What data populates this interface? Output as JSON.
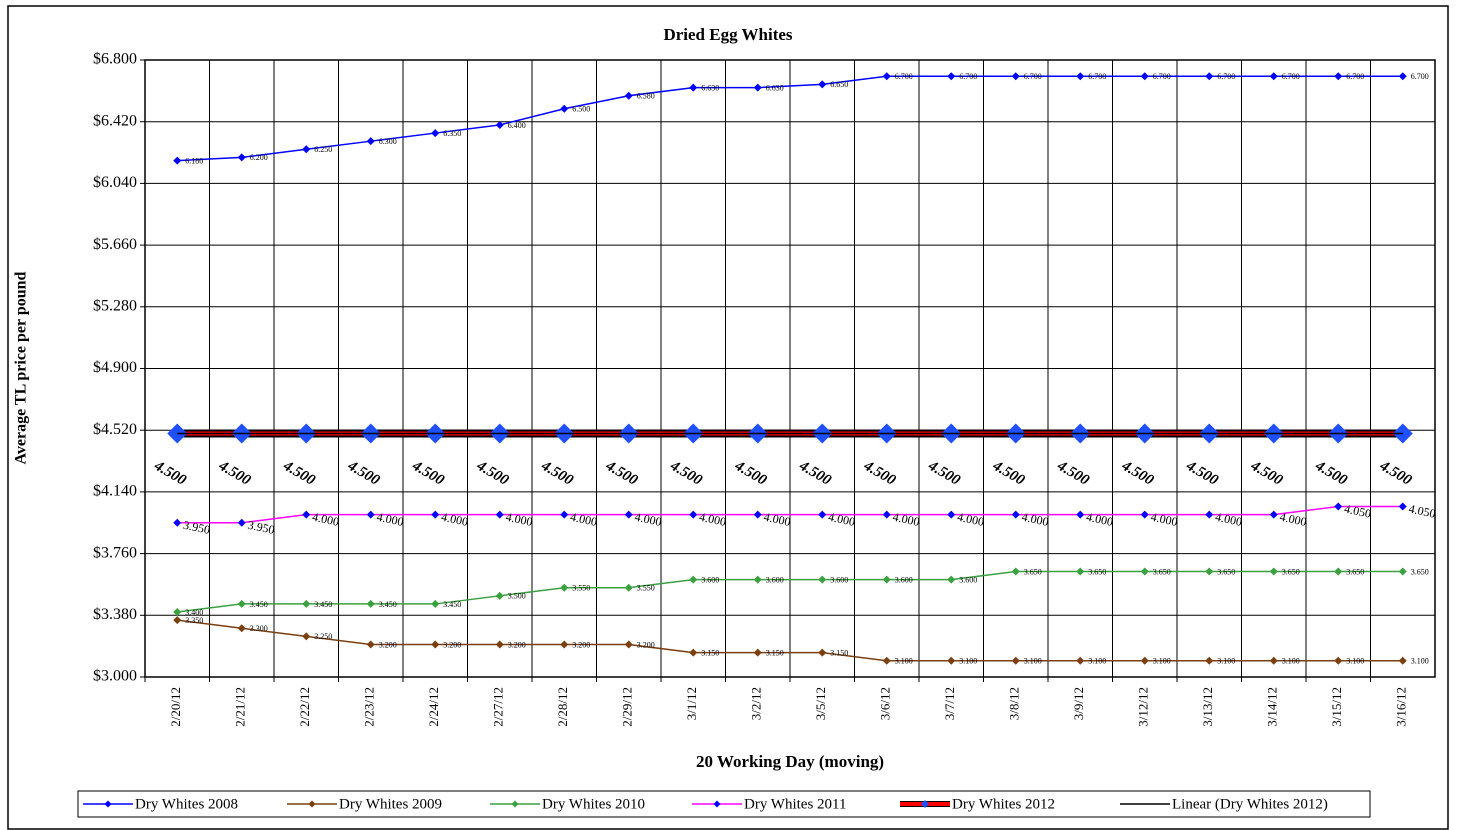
{
  "chart_data": {
    "type": "line",
    "title": "Dried Egg Whites",
    "x_label": "20 Working Day (moving)",
    "y_label": "Average TL price per pound",
    "categories": [
      "2/20/12",
      "2/21/12",
      "2/22/12",
      "2/23/12",
      "2/24/12",
      "2/27/12",
      "2/28/12",
      "2/29/12",
      "3/1/12",
      "3/2/12",
      "3/5/12",
      "3/6/12",
      "3/7/12",
      "3/8/12",
      "3/9/12",
      "3/12/12",
      "3/13/12",
      "3/14/12",
      "3/15/12",
      "3/16/12"
    ],
    "ylim": [
      3.0,
      6.8
    ],
    "yticks": [
      {
        "value": 3.0,
        "label": "$3.000"
      },
      {
        "value": 3.38,
        "label": "$3.380"
      },
      {
        "value": 3.76,
        "label": "$3.760"
      },
      {
        "value": 4.14,
        "label": "$4.140"
      },
      {
        "value": 4.52,
        "label": "$4.520"
      },
      {
        "value": 4.9,
        "label": "$4.900"
      },
      {
        "value": 5.28,
        "label": "$5.280"
      },
      {
        "value": 5.66,
        "label": "$5.660"
      },
      {
        "value": 6.04,
        "label": "$6.040"
      },
      {
        "value": 6.42,
        "label": "$6.420"
      },
      {
        "value": 6.8,
        "label": "$6.800"
      }
    ],
    "grid": true,
    "legend": "bottom",
    "series": [
      {
        "name": "Dry Whites 2008",
        "color": "#0000ff",
        "marker_color": "#0000ff",
        "values": [
          6.18,
          6.2,
          6.25,
          6.3,
          6.35,
          6.4,
          6.5,
          6.58,
          6.63,
          6.63,
          6.65,
          6.7,
          6.7,
          6.7,
          6.7,
          6.7,
          6.7,
          6.7,
          6.7,
          6.7
        ],
        "value_labels": [
          "6.180",
          "6.200",
          "6.250",
          "6.300",
          "6.350",
          "6.400",
          "6.500",
          "6.580",
          "6.630",
          "6.630",
          "6.650",
          "6.700",
          "6.700",
          "6.700",
          "6.700",
          "6.700",
          "6.700",
          "6.700",
          "6.700",
          "6.700"
        ]
      },
      {
        "name": "Dry Whites 2009",
        "color": "#7b3f10",
        "marker_color": "#7b3f10",
        "values": [
          3.35,
          3.3,
          3.25,
          3.2,
          3.2,
          3.2,
          3.2,
          3.2,
          3.15,
          3.15,
          3.15,
          3.1,
          3.1,
          3.1,
          3.1,
          3.1,
          3.1,
          3.1,
          3.1,
          3.1
        ],
        "value_labels": [
          "3.350",
          "3.300",
          "3.250",
          "3.200",
          "3.200",
          "3.200",
          "3.200",
          "3.200",
          "3.150",
          "3.150",
          "3.150",
          "3.100",
          "3.100",
          "3.100",
          "3.100",
          "3.100",
          "3.100",
          "3.100",
          "3.100",
          "3.100"
        ]
      },
      {
        "name": "Dry Whites 2010",
        "color": "#3aa040",
        "marker_color": "#3aa040",
        "values": [
          3.4,
          3.45,
          3.45,
          3.45,
          3.45,
          3.5,
          3.55,
          3.55,
          3.6,
          3.6,
          3.6,
          3.6,
          3.6,
          3.65,
          3.65,
          3.65,
          3.65,
          3.65,
          3.65,
          3.65
        ],
        "value_labels": [
          "3.400",
          "3.450",
          "3.450",
          "3.450",
          "3.450",
          "3.500",
          "3.550",
          "3.550",
          "3.600",
          "3.600",
          "3.600",
          "3.600",
          "3.600",
          "3.650",
          "3.650",
          "3.650",
          "3.650",
          "3.650",
          "3.650",
          "3.650"
        ]
      },
      {
        "name": "Dry Whites 2011",
        "color": "#ff00ff",
        "marker_color": "#0000ff",
        "values": [
          3.95,
          3.95,
          4.0,
          4.0,
          4.0,
          4.0,
          4.0,
          4.0,
          4.0,
          4.0,
          4.0,
          4.0,
          4.0,
          4.0,
          4.0,
          4.0,
          4.0,
          4.0,
          4.05,
          4.05
        ],
        "value_labels": [
          "3.950",
          "3.950",
          "4.000",
          "4.000",
          "4.000",
          "4.000",
          "4.000",
          "4.000",
          "4.000",
          "4.000",
          "4.000",
          "4.000",
          "4.000",
          "4.000",
          "4.000",
          "4.000",
          "4.000",
          "4.000",
          "4.050",
          "4.050"
        ]
      },
      {
        "name": "Dry Whites 2012",
        "color": "#ff0000",
        "marker_color": "#1f4fff",
        "values": [
          4.5,
          4.5,
          4.5,
          4.5,
          4.5,
          4.5,
          4.5,
          4.5,
          4.5,
          4.5,
          4.5,
          4.5,
          4.5,
          4.5,
          4.5,
          4.5,
          4.5,
          4.5,
          4.5,
          4.5
        ],
        "value_labels": [
          "4.500",
          "4.500",
          "4.500",
          "4.500",
          "4.500",
          "4.500",
          "4.500",
          "4.500",
          "4.500",
          "4.500",
          "4.500",
          "4.500",
          "4.500",
          "4.500",
          "4.500",
          "4.500",
          "4.500",
          "4.500",
          "4.500",
          "4.500"
        ]
      },
      {
        "name": "Linear (Dry Whites 2012)",
        "color": "#000000",
        "values": [
          4.5,
          4.5,
          4.5,
          4.5,
          4.5,
          4.5,
          4.5,
          4.5,
          4.5,
          4.5,
          4.5,
          4.5,
          4.5,
          4.5,
          4.5,
          4.5,
          4.5,
          4.5,
          4.5,
          4.5
        ]
      }
    ]
  }
}
